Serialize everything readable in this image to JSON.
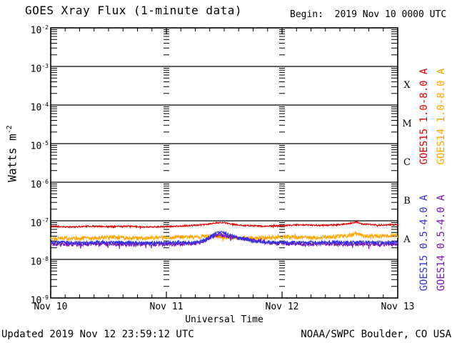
{
  "header": {
    "title": "GOES Xray Flux (1-minute data)",
    "begin": "Begin:  2019 Nov 10 0000 UTC"
  },
  "footer": {
    "updated": "Updated 2019 Nov 12 23:59:12 UTC",
    "source": "NOAA/SWPC Boulder, CO USA"
  },
  "chart_data": {
    "type": "line",
    "title": "GOES Xray Flux (1-minute data)",
    "xlabel": "Universal Time",
    "ylabel": "Watts m^-2",
    "ylabel_base": "Watts m",
    "ylabel_exp": "-2",
    "y_scale": "log",
    "ylim": [
      1e-09,
      0.01
    ],
    "y_tick_base": "10",
    "y_tick_exponents": [
      "-2",
      "-3",
      "-4",
      "-5",
      "-6",
      "-7",
      "-8",
      "-9"
    ],
    "x_range_hours": [
      0,
      72
    ],
    "x_tick_labels": [
      "Nov 10",
      "Nov 11",
      "Nov 12",
      "Nov 13"
    ],
    "x_day_boundaries_hours": [
      24,
      48
    ],
    "grid": {
      "horizontal_decade_lines": true,
      "vertical_day_tick_columns": true,
      "minor_log_ticks": true
    },
    "flux_classes": [
      {
        "label": "X",
        "mid_log10_flux": -3.5
      },
      {
        "label": "M",
        "mid_log10_flux": -4.5
      },
      {
        "label": "C",
        "mid_log10_flux": -5.5
      },
      {
        "label": "B",
        "mid_log10_flux": -6.5
      },
      {
        "label": "A",
        "mid_log10_flux": -7.5
      }
    ],
    "legend_position": "right-rotated",
    "series": [
      {
        "name": "GOES15 1.0-8.0 A",
        "color": "#dd0000",
        "baseline_flux_wm2": 7.5e-08,
        "noise_log10": 0.018,
        "seed": 11,
        "anchors_hours_log10flux": [
          [
            0,
            -7.14
          ],
          [
            4,
            -7.16
          ],
          [
            8,
            -7.14
          ],
          [
            12,
            -7.15
          ],
          [
            16,
            -7.14
          ],
          [
            20,
            -7.16
          ],
          [
            24,
            -7.15
          ],
          [
            28,
            -7.13
          ],
          [
            32,
            -7.1
          ],
          [
            34,
            -7.06
          ],
          [
            35.5,
            -7.04
          ],
          [
            37,
            -7.08
          ],
          [
            40,
            -7.12
          ],
          [
            44,
            -7.14
          ],
          [
            48,
            -7.13
          ],
          [
            52,
            -7.1
          ],
          [
            56,
            -7.12
          ],
          [
            60,
            -7.1
          ],
          [
            62.5,
            -7.06
          ],
          [
            63.5,
            -7.03
          ],
          [
            64.5,
            -7.08
          ],
          [
            68,
            -7.11
          ],
          [
            72,
            -7.1
          ]
        ]
      },
      {
        "name": "GOES14 1.0-8.0 A",
        "color": "#ffa500",
        "baseline_flux_wm2": 3.8e-08,
        "noise_log10": 0.05,
        "seed": 22,
        "anchors_hours_log10flux": [
          [
            0,
            -7.44
          ],
          [
            6,
            -7.46
          ],
          [
            12,
            -7.43
          ],
          [
            18,
            -7.45
          ],
          [
            24,
            -7.43
          ],
          [
            30,
            -7.42
          ],
          [
            34,
            -7.4
          ],
          [
            38,
            -7.44
          ],
          [
            42,
            -7.45
          ],
          [
            46,
            -7.43
          ],
          [
            50,
            -7.42
          ],
          [
            54,
            -7.44
          ],
          [
            58,
            -7.42
          ],
          [
            62,
            -7.38
          ],
          [
            63.5,
            -7.33
          ],
          [
            65,
            -7.4
          ],
          [
            68,
            -7.4
          ],
          [
            72,
            -7.38
          ]
        ]
      },
      {
        "name": "GOES14 0.5-4.0 A",
        "color": "#7718b8",
        "baseline_flux_wm2": 2.5e-08,
        "noise_log10": 0.055,
        "seed": 44,
        "anchors_hours_log10flux": [
          [
            0,
            -7.6
          ],
          [
            6,
            -7.61
          ],
          [
            12,
            -7.6
          ],
          [
            18,
            -7.61
          ],
          [
            24,
            -7.6
          ],
          [
            30,
            -7.59
          ],
          [
            31.5,
            -7.54
          ],
          [
            33,
            -7.44
          ],
          [
            34.5,
            -7.37
          ],
          [
            36,
            -7.37
          ],
          [
            37.5,
            -7.42
          ],
          [
            39,
            -7.45
          ],
          [
            41,
            -7.48
          ],
          [
            43,
            -7.52
          ],
          [
            45,
            -7.56
          ],
          [
            48,
            -7.59
          ],
          [
            54,
            -7.6
          ],
          [
            60,
            -7.6
          ],
          [
            66,
            -7.61
          ],
          [
            72,
            -7.6
          ]
        ]
      },
      {
        "name": "GOES15 0.5-4.0 A",
        "color": "#3333e0",
        "baseline_flux_wm2": 2.7e-08,
        "noise_log10": 0.04,
        "seed": 33,
        "anchors_hours_log10flux": [
          [
            0,
            -7.56
          ],
          [
            6,
            -7.57
          ],
          [
            12,
            -7.56
          ],
          [
            18,
            -7.57
          ],
          [
            24,
            -7.57
          ],
          [
            30,
            -7.56
          ],
          [
            31.5,
            -7.52
          ],
          [
            33,
            -7.42
          ],
          [
            34.5,
            -7.31
          ],
          [
            35.5,
            -7.3
          ],
          [
            36.5,
            -7.34
          ],
          [
            38,
            -7.41
          ],
          [
            40,
            -7.47
          ],
          [
            42,
            -7.52
          ],
          [
            44,
            -7.55
          ],
          [
            48,
            -7.56
          ],
          [
            54,
            -7.56
          ],
          [
            60,
            -7.55
          ],
          [
            66,
            -7.56
          ],
          [
            72,
            -7.56
          ]
        ]
      }
    ],
    "legend": [
      {
        "label": "GOES15 1.0-8.0 A",
        "color": "#dd0000"
      },
      {
        "label": "GOES14 1.0-8.0 A",
        "color": "#ffa500"
      },
      {
        "label": "GOES15 0.5-4.0 A",
        "color": "#3333e0"
      },
      {
        "label": "GOES14 0.5-4.0 A",
        "color": "#7718b8"
      }
    ]
  }
}
